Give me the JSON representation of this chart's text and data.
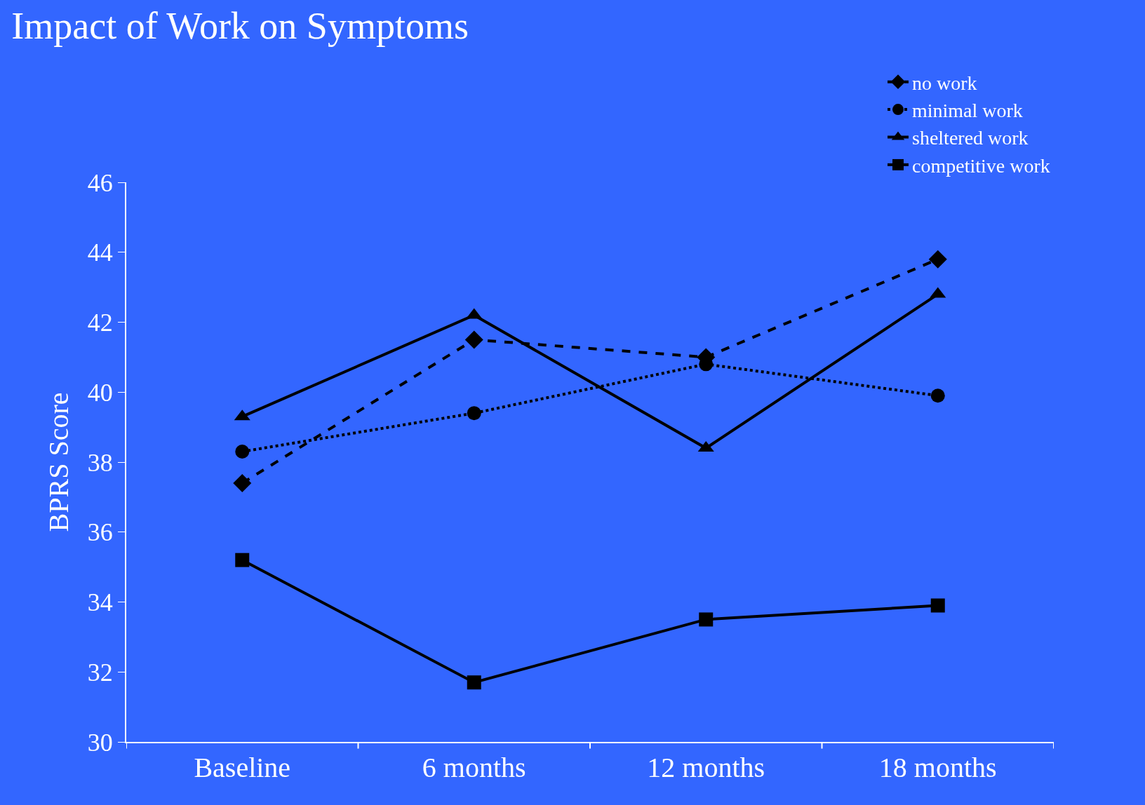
{
  "chart_data": {
    "type": "line",
    "title": "Impact of Work on Symptoms",
    "ylabel": "BPRS Score",
    "categories": [
      "Baseline",
      "6 months",
      "12 months",
      "18 months"
    ],
    "series": [
      {
        "name": "no work",
        "color": "#000000",
        "values": [
          37.4,
          41.5,
          41.0,
          43.8
        ],
        "marker": "diamond",
        "line_style": "dashed"
      },
      {
        "name": "minimal work",
        "color": "#000000",
        "values": [
          38.3,
          39.4,
          40.8,
          39.9
        ],
        "marker": "circle",
        "line_style": "dotted"
      },
      {
        "name": "sheltered work",
        "color": "#000000",
        "values": [
          39.3,
          42.2,
          38.4,
          42.8
        ],
        "marker": "triangle",
        "line_style": "solid"
      },
      {
        "name": "competitive work",
        "color": "#000000",
        "values": [
          35.2,
          31.7,
          33.5,
          33.9
        ],
        "marker": "square",
        "line_style": "solid"
      }
    ],
    "ylim": [
      30,
      46
    ],
    "yticks": [
      30,
      32,
      34,
      36,
      38,
      40,
      42,
      44,
      46
    ],
    "grid": false,
    "legend": "top right"
  }
}
